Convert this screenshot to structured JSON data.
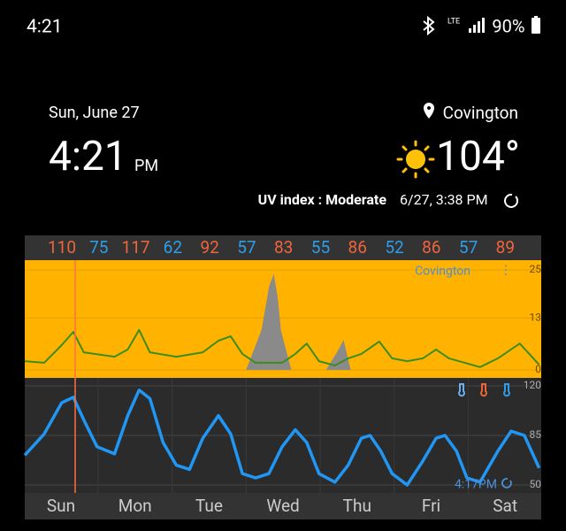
{
  "status_bar": {
    "time": "4:21",
    "network": "LTE",
    "battery": "90%"
  },
  "header": {
    "date": "Sun, June 27",
    "time": "4:21",
    "ampm": "PM",
    "location": "Covington",
    "temperature": "104°",
    "uv": "UV index : Moderate",
    "updated": "6/27, 3:38 PM"
  },
  "forecast": {
    "temps": [
      110,
      75,
      117,
      62,
      92,
      57,
      83,
      55,
      86,
      52,
      86,
      57,
      89
    ],
    "high_color": "#f0643c",
    "low_color": "#2f9ee8",
    "location_label": "Covington",
    "cursor_time": "4:17PM",
    "days": [
      "Sun",
      "Mon",
      "Tue",
      "Wed",
      "Thu",
      "Fri",
      "Sat"
    ],
    "xlim": [
      0,
      168
    ],
    "top_panel": {
      "ylim": [
        0,
        25
      ],
      "yticks": [
        0,
        13,
        25
      ],
      "background": "#ffb300"
    },
    "bottom_panel": {
      "ylim": [
        50,
        120
      ],
      "yticks": [
        50,
        85,
        120
      ],
      "background": "#2b2b2b"
    },
    "temperature": {
      "color": "#2196f3",
      "x": [
        0,
        6.3,
        12,
        15.8,
        19.2,
        23.5,
        29.2,
        33.5,
        37.2,
        40.7,
        45,
        49.3,
        53.6,
        57.9,
        63,
        67,
        70.8,
        75.1,
        79.4,
        83.7,
        88,
        91.7,
        95.7,
        100.9,
        105.2,
        109.5,
        112.3,
        115.8,
        119.5,
        124.4,
        129.5,
        133.8,
        136.7,
        140.4,
        143.8,
        148.1,
        153.9,
        158.2,
        162.5,
        167.3
      ],
      "values": [
        71,
        86,
        108,
        112,
        96,
        77,
        72,
        99,
        117,
        111,
        80,
        64,
        61,
        83,
        99,
        86,
        58,
        55,
        58,
        77,
        89,
        80,
        58,
        52,
        64,
        83,
        85,
        74,
        58,
        50,
        67,
        83,
        85,
        74,
        55,
        52,
        74,
        88,
        85,
        62
      ]
    },
    "wind": {
      "color": "#3c8c1e",
      "x": [
        0,
        6.3,
        12,
        15.8,
        19.2,
        29.2,
        33.5,
        37.2,
        40.7,
        49.3,
        57.9,
        63,
        67,
        70.8,
        75.1,
        83.7,
        88,
        91.7,
        95.7,
        100.9,
        105.2,
        109.5,
        115.3,
        119.5,
        124.4,
        129.5,
        133.8,
        138,
        148.1,
        153.9,
        161,
        167.3
      ],
      "values": [
        2.2,
        1.8,
        6.2,
        9.5,
        4.4,
        3.3,
        5.1,
        10,
        4.4,
        3.3,
        4.4,
        7.3,
        8.4,
        4,
        1.8,
        1.8,
        4,
        6.6,
        2.2,
        1.1,
        2.9,
        4,
        7.1,
        2.9,
        2.2,
        2.9,
        5.1,
        2.9,
        0.7,
        2.9,
        6.6,
        1.3
      ]
    },
    "precip": {
      "color": "#8a8a8a",
      "x": [
        72,
        77,
        79.5,
        81,
        82.3,
        83.3,
        86.7,
        98,
        102,
        103.7,
        106
      ],
      "values": [
        0,
        10,
        21,
        24,
        18,
        10,
        0,
        0,
        5,
        7.5,
        0
      ]
    }
  }
}
